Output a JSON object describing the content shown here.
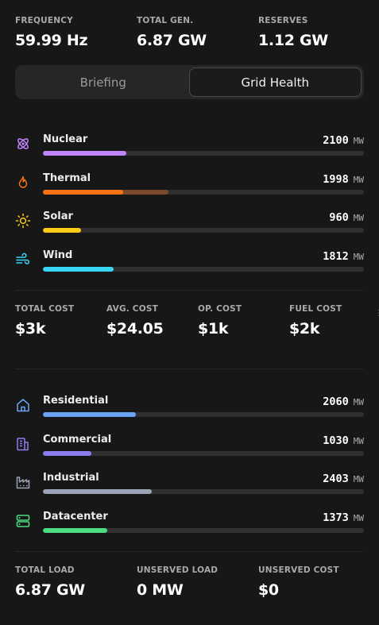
{
  "top_stats": [
    {
      "label": "FREQUENCY",
      "value": "59.99 Hz"
    },
    {
      "label": "TOTAL GEN.",
      "value": "6.87 GW"
    },
    {
      "label": "RESERVES",
      "value": "1.12 GW"
    }
  ],
  "tabs": [
    {
      "label": "Briefing",
      "active": false
    },
    {
      "label": "Grid Health",
      "active": true
    }
  ],
  "generation": [
    {
      "name": "Nuclear",
      "value": "2100",
      "unit": "MW",
      "icon": "atom-icon",
      "color": "#c084fc",
      "level": 0.26
    },
    {
      "name": "Thermal",
      "value": "1998",
      "unit": "MW",
      "icon": "flame-icon",
      "color": "#f97316",
      "level": 0.25,
      "secondary_color": "#7c4a2a",
      "secondary_level": 0.39
    },
    {
      "name": "Solar",
      "value": "960",
      "unit": "MW",
      "icon": "sun-icon",
      "color": "#facc15",
      "level": 0.12
    },
    {
      "name": "Wind",
      "value": "1812",
      "unit": "MW",
      "icon": "wind-icon",
      "color": "#38d5f5",
      "level": 0.22
    }
  ],
  "cost_stats": [
    {
      "label": "TOTAL COST",
      "value": "$3k"
    },
    {
      "label": "AVG. COST",
      "value": "$24.05"
    },
    {
      "label": "OP. COST",
      "value": "$1k"
    },
    {
      "label": "FUEL COST",
      "value": "$2k"
    }
  ],
  "loads": [
    {
      "name": "Residential",
      "value": "2060",
      "unit": "MW",
      "icon": "home-icon",
      "color": "#6ba3f5",
      "level": 0.29
    },
    {
      "name": "Commercial",
      "value": "1030",
      "unit": "MW",
      "icon": "building-icon",
      "color": "#8b7ff0",
      "level": 0.15
    },
    {
      "name": "Industrial",
      "value": "2403",
      "unit": "MW",
      "icon": "factory-icon",
      "color": "#9aa3b5",
      "level": 0.34
    },
    {
      "name": "Datacenter",
      "value": "1373",
      "unit": "MW",
      "icon": "server-icon",
      "color": "#4ade80",
      "level": 0.2
    }
  ],
  "load_stats": [
    {
      "label": "TOTAL LOAD",
      "value": "6.87 GW"
    },
    {
      "label": "UNSERVED LOAD",
      "value": "0 MW"
    },
    {
      "label": "UNSERVED COST",
      "value": "$0"
    }
  ]
}
